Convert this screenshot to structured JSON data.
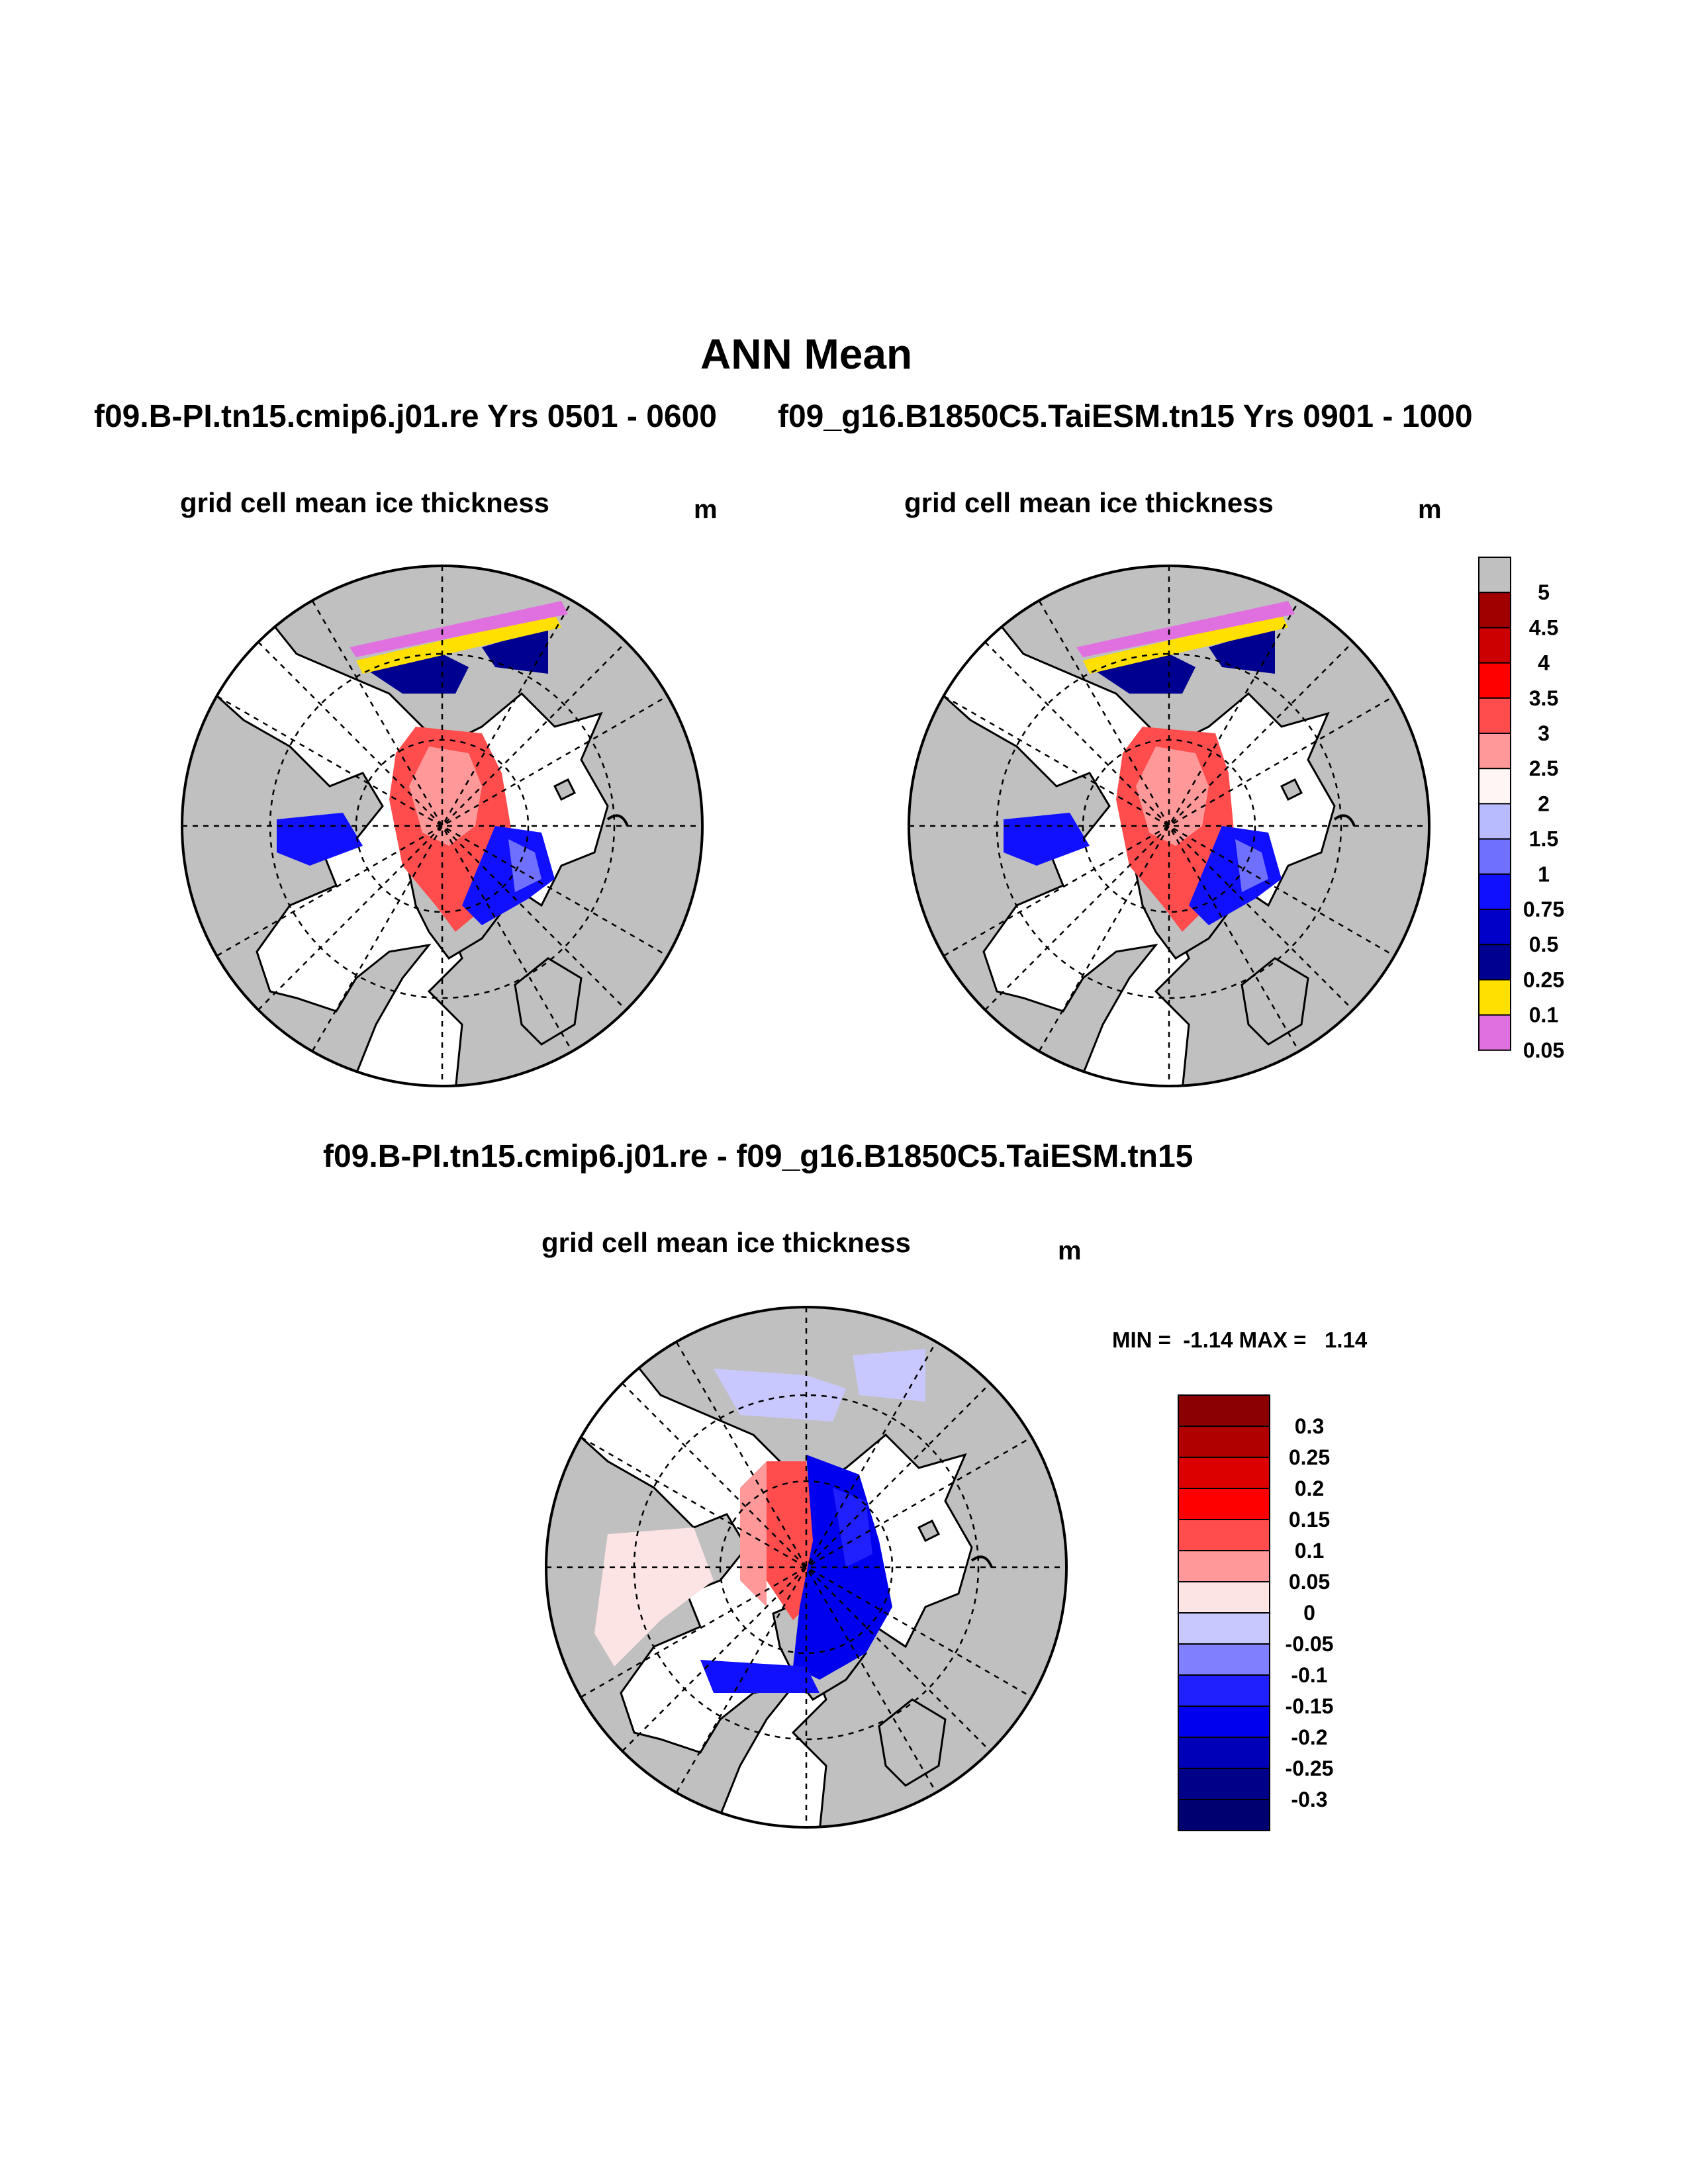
{
  "title": "ANN Mean",
  "run_a_header": "f09.B-PI.tn15.cmip6.j01.re  Yrs 0501 - 0600",
  "run_b_header": "f09_g16.B1850C5.TaiESM.tn15  Yrs 0901 - 1000",
  "diff_header": "f09.B-PI.tn15.cmip6.j01.re - f09_g16.B1850C5.TaiESM.tn15",
  "panels": {
    "a": {
      "variable": "grid cell mean ice thickness",
      "units": "m"
    },
    "b": {
      "variable": "grid cell mean ice thickness",
      "units": "m"
    },
    "diff": {
      "variable": "grid cell mean ice thickness",
      "units": "m"
    }
  },
  "diff_stats": {
    "min_label": "MIN =",
    "min": "-1.14",
    "max_label": "MAX =",
    "max": "1.14"
  },
  "colorbar_main": {
    "labels": [
      "5",
      "4.5",
      "4",
      "3.5",
      "3",
      "2.5",
      "2",
      "1.5",
      "1",
      "0.75",
      "0.5",
      "0.25",
      "0.1",
      "0.05"
    ],
    "colors": [
      "#c0c0c0",
      "#a00000",
      "#cc0000",
      "#ff0000",
      "#ff4d4d",
      "#ff9999",
      "#fff5f5",
      "#b8bcff",
      "#7070ff",
      "#1010ff",
      "#0000c8",
      "#000090",
      "#ffe000",
      "#e070e0"
    ]
  },
  "colorbar_diff": {
    "labels": [
      "0.3",
      "0.25",
      "0.2",
      "0.15",
      "0.1",
      "0.05",
      "0",
      "-0.05",
      "-0.1",
      "-0.15",
      "-0.2",
      "-0.25",
      "-0.3"
    ],
    "colors": [
      "#8b0000",
      "#b00000",
      "#dd0000",
      "#ff0000",
      "#ff4d4d",
      "#ff9999",
      "#fde4e4",
      "#c8c8ff",
      "#8080ff",
      "#2020ff",
      "#0000ee",
      "#0000b8",
      "#000088",
      "#000070"
    ]
  }
}
